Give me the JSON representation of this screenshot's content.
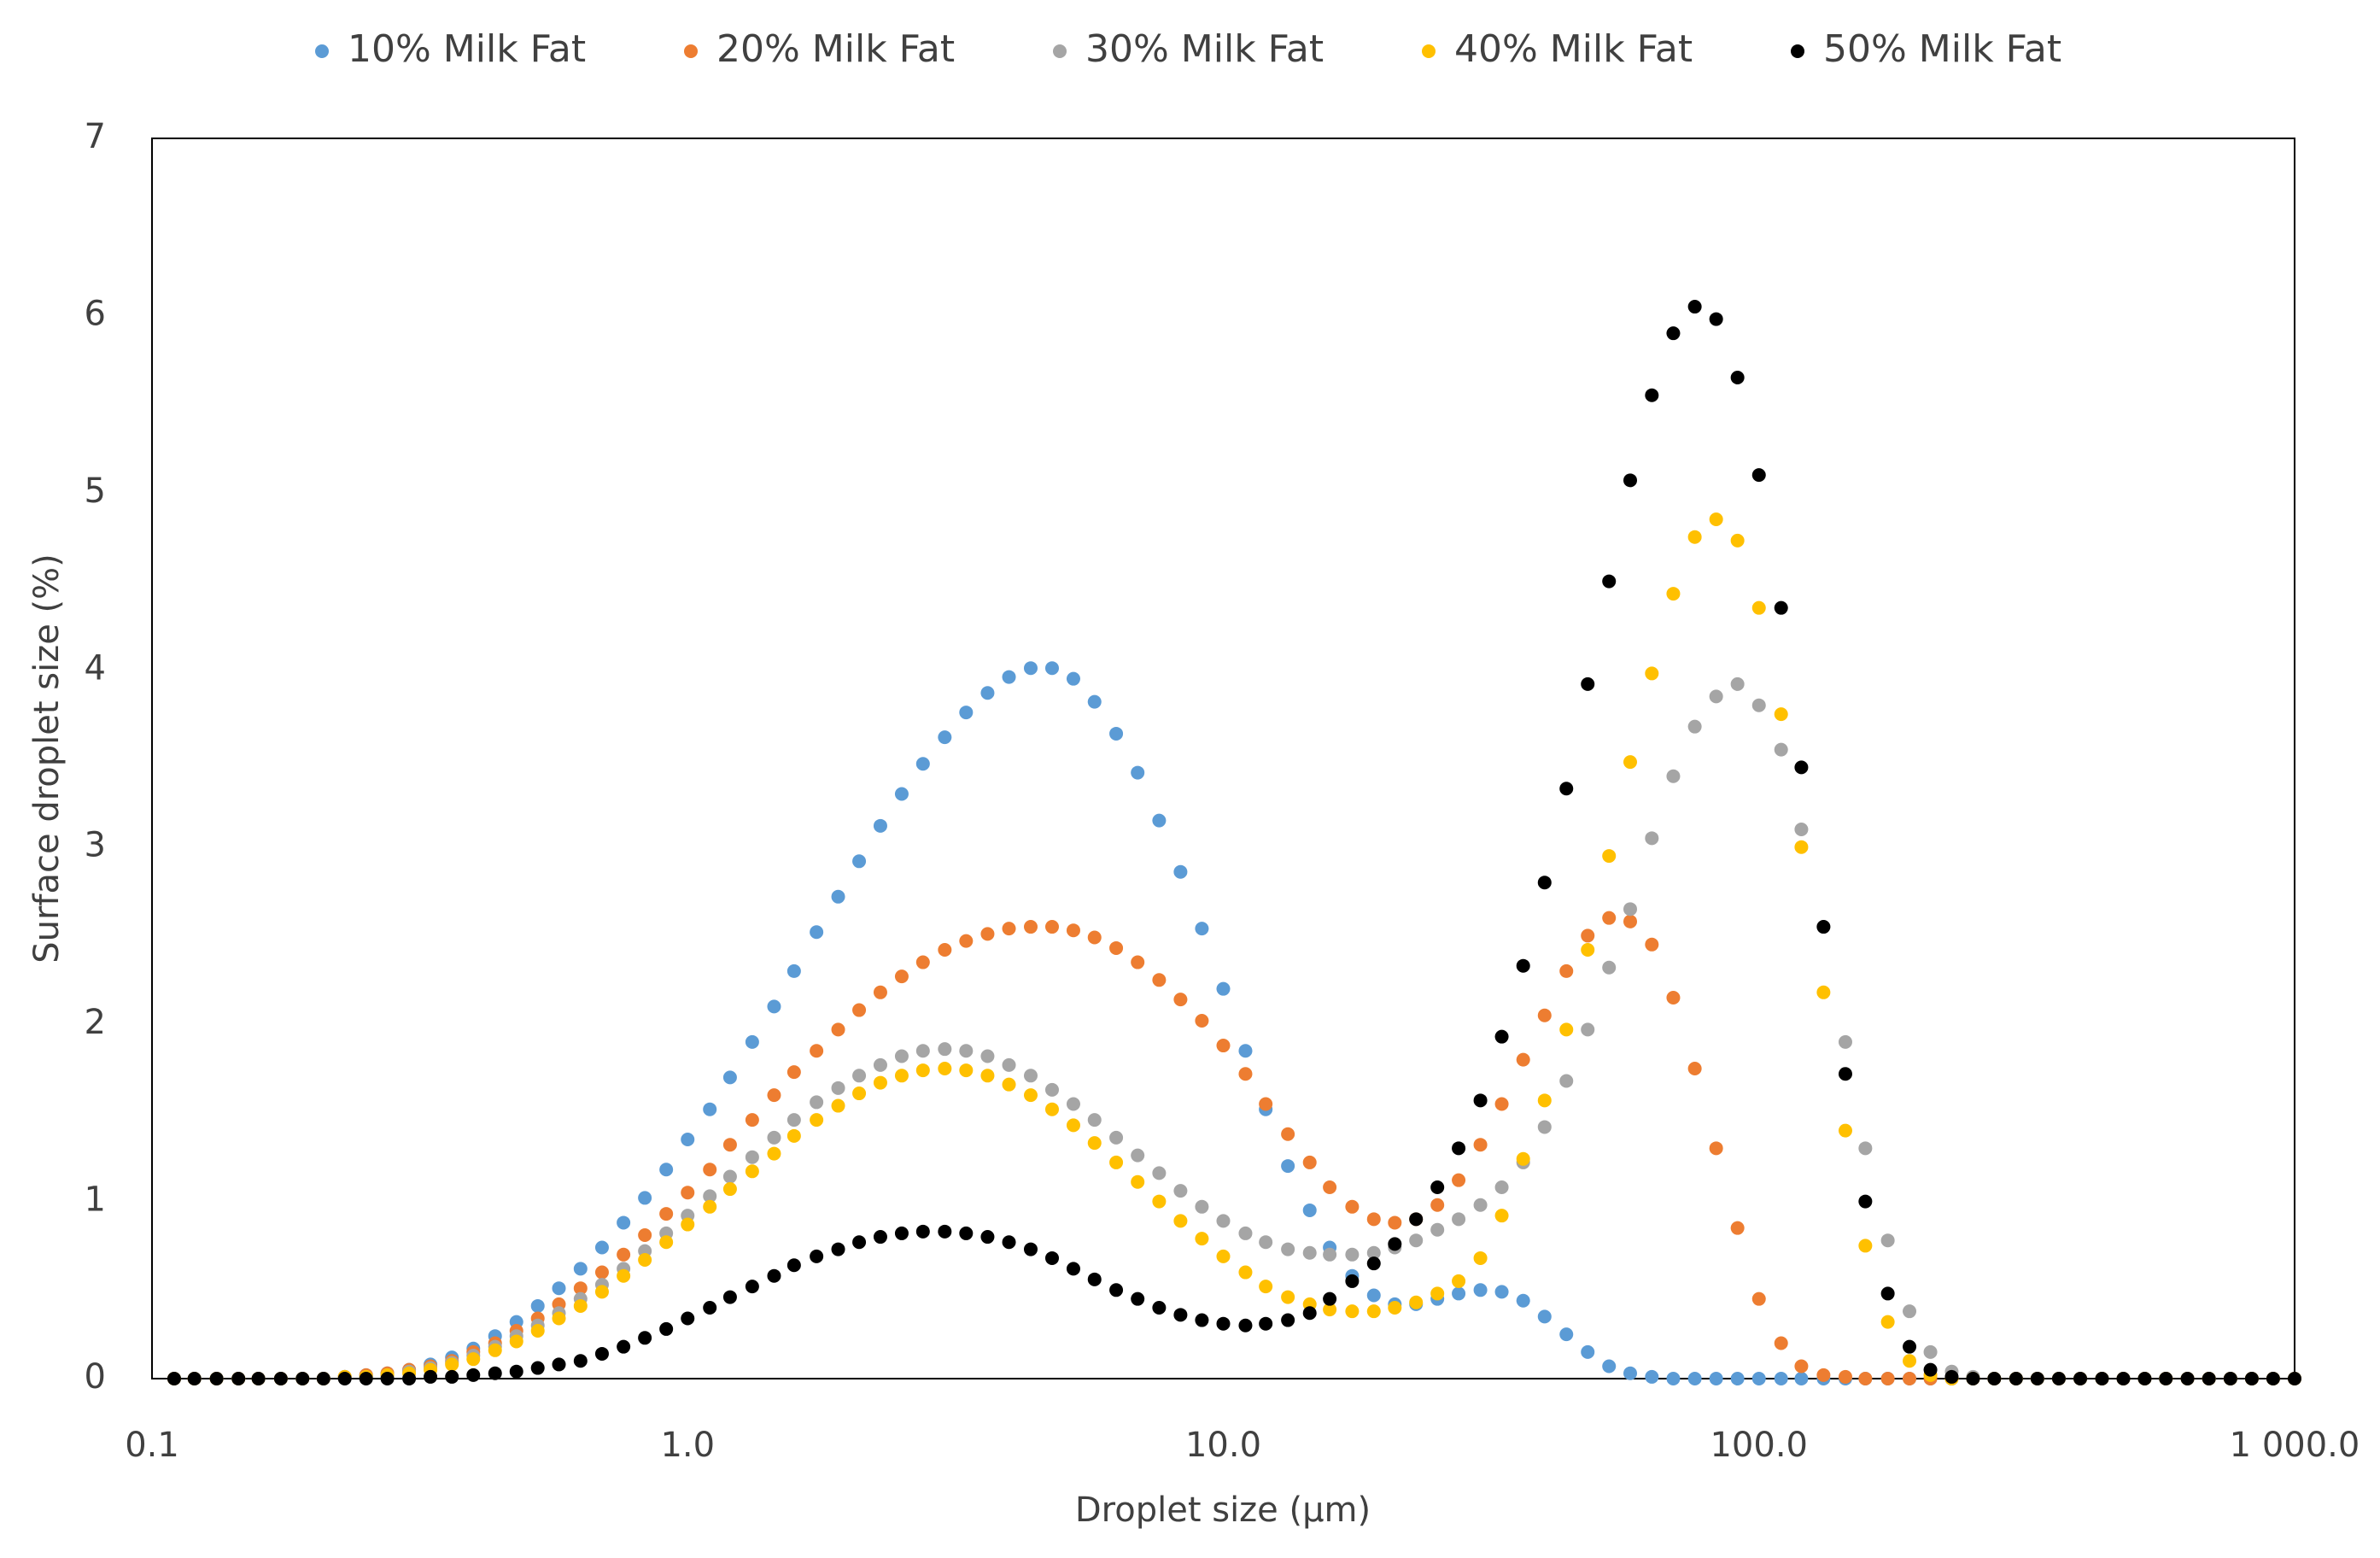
{
  "chart_data": {
    "type": "scatter",
    "x_label": "Droplet size (µm)",
    "y_label": "Surface droplet size (%)",
    "x_scale": "log",
    "legend": "top",
    "xlim": [
      0.1,
      1000
    ],
    "xticks": [
      0.1,
      {
        "value": 1,
        "label": "1.0"
      },
      {
        "value": 10,
        "label": "10.0"
      },
      {
        "value": 100,
        "label": "100.0"
      },
      {
        "value": 1000,
        "label": "1 000.0"
      }
    ],
    "ylim": [
      0,
      7
    ],
    "yticks": [
      0,
      1,
      2,
      3,
      4,
      5,
      6,
      7
    ],
    "grid": false,
    "x": [
      0.11,
      0.12,
      0.132,
      0.145,
      0.158,
      0.174,
      0.191,
      0.209,
      0.229,
      0.251,
      0.275,
      0.302,
      0.331,
      0.363,
      0.398,
      0.437,
      0.479,
      0.525,
      0.575,
      0.631,
      0.692,
      0.759,
      0.832,
      0.912,
      1.0,
      1.1,
      1.2,
      1.32,
      1.45,
      1.58,
      1.74,
      1.91,
      2.09,
      2.29,
      2.51,
      2.75,
      3.02,
      3.31,
      3.63,
      3.98,
      4.37,
      4.79,
      5.25,
      5.75,
      6.31,
      6.92,
      7.59,
      8.32,
      9.12,
      10.0,
      11.0,
      12.0,
      13.2,
      14.5,
      15.8,
      17.4,
      19.1,
      20.9,
      22.9,
      25.1,
      27.5,
      30.2,
      33.1,
      36.3,
      39.8,
      43.7,
      47.9,
      52.5,
      57.5,
      63.1,
      69.2,
      75.9,
      83.2,
      91.2,
      100,
      110,
      120,
      132,
      145,
      158,
      174,
      191,
      209,
      229,
      251,
      275,
      302,
      331,
      363,
      398,
      437,
      479,
      525,
      575,
      631,
      692,
      759,
      832,
      912,
      1000
    ],
    "series": [
      {
        "name": "10% Milk Fat",
        "color": "#5B9BD5",
        "values": [
          0,
          0,
          0,
          0,
          0,
          0,
          0,
          0,
          0.01,
          0.02,
          0.03,
          0.05,
          0.08,
          0.12,
          0.17,
          0.24,
          0.32,
          0.41,
          0.51,
          0.62,
          0.74,
          0.88,
          1.02,
          1.18,
          1.35,
          1.52,
          1.7,
          1.9,
          2.1,
          2.3,
          2.52,
          2.72,
          2.92,
          3.12,
          3.3,
          3.47,
          3.62,
          3.76,
          3.87,
          3.96,
          4.01,
          4.01,
          3.95,
          3.82,
          3.64,
          3.42,
          3.15,
          2.86,
          2.54,
          2.2,
          1.85,
          1.52,
          1.2,
          0.95,
          0.74,
          0.58,
          0.47,
          0.42,
          0.42,
          0.45,
          0.48,
          0.5,
          0.49,
          0.44,
          0.35,
          0.25,
          0.15,
          0.07,
          0.03,
          0.01,
          0,
          0,
          0,
          0,
          0,
          0,
          0,
          0,
          0,
          0,
          0,
          0,
          0,
          0,
          0,
          0,
          0,
          0,
          0,
          0,
          0,
          0,
          0,
          0,
          0,
          0,
          0,
          0,
          0,
          0
        ]
      },
      {
        "name": "20% Milk Fat",
        "color": "#ED7D31",
        "values": [
          0,
          0,
          0,
          0,
          0,
          0,
          0,
          0,
          0.01,
          0.02,
          0.03,
          0.05,
          0.07,
          0.1,
          0.15,
          0.2,
          0.27,
          0.34,
          0.42,
          0.51,
          0.6,
          0.7,
          0.81,
          0.93,
          1.05,
          1.18,
          1.32,
          1.46,
          1.6,
          1.73,
          1.85,
          1.97,
          2.08,
          2.18,
          2.27,
          2.35,
          2.42,
          2.47,
          2.51,
          2.54,
          2.55,
          2.55,
          2.53,
          2.49,
          2.43,
          2.35,
          2.25,
          2.14,
          2.02,
          1.88,
          1.72,
          1.55,
          1.38,
          1.22,
          1.08,
          0.97,
          0.9,
          0.88,
          0.9,
          0.98,
          1.12,
          1.32,
          1.55,
          1.8,
          2.05,
          2.3,
          2.5,
          2.6,
          2.58,
          2.45,
          2.15,
          1.75,
          1.3,
          0.85,
          0.45,
          0.2,
          0.07,
          0.02,
          0.01,
          0,
          0,
          0,
          0,
          0,
          0,
          0,
          0,
          0,
          0,
          0,
          0,
          0,
          0,
          0,
          0,
          0,
          0,
          0,
          0,
          0
        ]
      },
      {
        "name": "30% Milk Fat",
        "color": "#A5A5A5",
        "values": [
          0,
          0,
          0,
          0,
          0,
          0,
          0,
          0,
          0.01,
          0.01,
          0.02,
          0.04,
          0.06,
          0.09,
          0.13,
          0.18,
          0.24,
          0.3,
          0.37,
          0.45,
          0.53,
          0.62,
          0.72,
          0.82,
          0.92,
          1.03,
          1.14,
          1.25,
          1.36,
          1.46,
          1.56,
          1.64,
          1.71,
          1.77,
          1.82,
          1.85,
          1.86,
          1.85,
          1.82,
          1.77,
          1.71,
          1.63,
          1.55,
          1.46,
          1.36,
          1.26,
          1.16,
          1.06,
          0.97,
          0.89,
          0.82,
          0.77,
          0.73,
          0.71,
          0.7,
          0.7,
          0.71,
          0.74,
          0.78,
          0.84,
          0.9,
          0.98,
          1.08,
          1.22,
          1.42,
          1.68,
          1.97,
          2.32,
          2.65,
          3.05,
          3.4,
          3.68,
          3.85,
          3.92,
          3.8,
          3.55,
          3.1,
          2.55,
          1.9,
          1.3,
          0.78,
          0.38,
          0.15,
          0.04,
          0.01,
          0,
          0,
          0,
          0,
          0,
          0,
          0,
          0,
          0,
          0,
          0,
          0,
          0,
          0,
          0
        ]
      },
      {
        "name": "40% Milk Fat",
        "color": "#FFC000",
        "values": [
          0,
          0,
          0,
          0,
          0,
          0,
          0,
          0,
          0.01,
          0.01,
          0.02,
          0.03,
          0.05,
          0.08,
          0.11,
          0.16,
          0.21,
          0.27,
          0.34,
          0.41,
          0.49,
          0.58,
          0.67,
          0.77,
          0.87,
          0.97,
          1.07,
          1.17,
          1.27,
          1.37,
          1.46,
          1.54,
          1.61,
          1.67,
          1.71,
          1.74,
          1.75,
          1.74,
          1.71,
          1.66,
          1.6,
          1.52,
          1.43,
          1.33,
          1.22,
          1.11,
          1.0,
          0.89,
          0.79,
          0.69,
          0.6,
          0.52,
          0.46,
          0.42,
          0.39,
          0.38,
          0.38,
          0.4,
          0.43,
          0.48,
          0.55,
          0.68,
          0.92,
          1.24,
          1.57,
          1.97,
          2.42,
          2.95,
          3.48,
          3.98,
          4.43,
          4.75,
          4.85,
          4.73,
          4.35,
          3.75,
          3.0,
          2.18,
          1.4,
          0.75,
          0.32,
          0.1,
          0.02,
          0,
          0,
          0,
          0,
          0,
          0,
          0,
          0,
          0,
          0,
          0,
          0,
          0,
          0,
          0,
          0,
          0
        ]
      },
      {
        "name": "50% Milk Fat",
        "color": "#000000",
        "values": [
          0,
          0,
          0,
          0,
          0,
          0,
          0,
          0,
          0,
          0,
          0,
          0,
          0.01,
          0.01,
          0.02,
          0.03,
          0.04,
          0.06,
          0.08,
          0.1,
          0.14,
          0.18,
          0.23,
          0.28,
          0.34,
          0.4,
          0.46,
          0.52,
          0.58,
          0.64,
          0.69,
          0.73,
          0.77,
          0.8,
          0.82,
          0.83,
          0.83,
          0.82,
          0.8,
          0.77,
          0.73,
          0.68,
          0.62,
          0.56,
          0.5,
          0.45,
          0.4,
          0.36,
          0.33,
          0.31,
          0.3,
          0.31,
          0.33,
          0.37,
          0.45,
          0.55,
          0.65,
          0.76,
          0.9,
          1.08,
          1.3,
          1.57,
          1.93,
          2.33,
          2.8,
          3.33,
          3.92,
          4.5,
          5.07,
          5.55,
          5.9,
          6.05,
          5.98,
          5.65,
          5.1,
          4.35,
          3.45,
          2.55,
          1.72,
          1.0,
          0.48,
          0.18,
          0.05,
          0.01,
          0,
          0,
          0,
          0,
          0,
          0,
          0,
          0,
          0,
          0,
          0,
          0,
          0,
          0,
          0,
          0
        ]
      }
    ]
  }
}
